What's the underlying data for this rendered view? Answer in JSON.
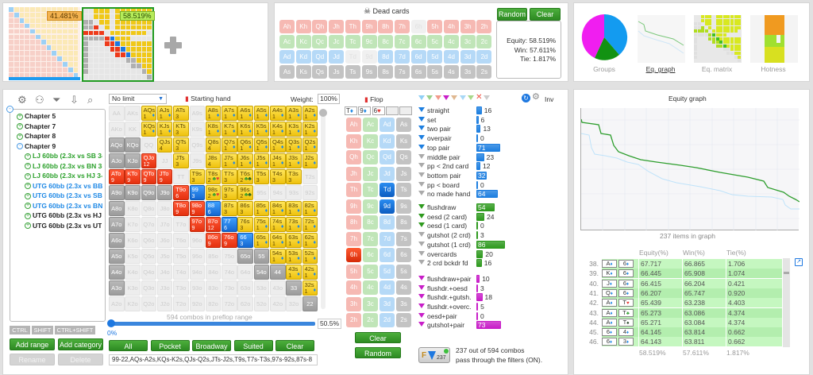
{
  "ranges_strip": {
    "range1_equity": "41.481%",
    "range2_equity": "58.519%",
    "add_icon": "plus-icon"
  },
  "dead_cards": {
    "title": "Dead cards",
    "icon": "skull-icon",
    "random": "Random",
    "clear": "Clear",
    "rows": [
      [
        "Ah",
        "Kh",
        "Qh",
        "Jh",
        "Th",
        "9h",
        "8h",
        "7h",
        "6h",
        "5h",
        "4h",
        "3h",
        "2h"
      ],
      [
        "Ac",
        "Kc",
        "Qc",
        "Jc",
        "Tc",
        "9c",
        "8c",
        "7c",
        "6c",
        "5c",
        "4c",
        "3c",
        "2c"
      ],
      [
        "Ad",
        "Kd",
        "Qd",
        "Jd",
        "Td",
        "9d",
        "8d",
        "7d",
        "6d",
        "5d",
        "4d",
        "3d",
        "2d"
      ],
      [
        "As",
        "Ks",
        "Qs",
        "Js",
        "Ts",
        "9s",
        "8s",
        "7s",
        "6s",
        "5s",
        "4s",
        "3s",
        "2s"
      ]
    ],
    "unavailable": [
      "6h",
      "Td",
      "9d"
    ]
  },
  "stats": {
    "equity": "Equity: 58.519%",
    "win": "Win: 57.611%",
    "tie": "Tie: 1.817%"
  },
  "views": [
    {
      "label": "Groups"
    },
    {
      "label": "Eq. graph",
      "active": true
    },
    {
      "label": "Eq. matrix"
    },
    {
      "label": "Hotness"
    }
  ],
  "toolbar_icons": [
    "gear-icon",
    "user-icon",
    "filter-icon",
    "import-icon",
    "search-icon"
  ],
  "tree": [
    {
      "label": "Chapter 5",
      "color": "#222"
    },
    {
      "label": "Chapter 7",
      "color": "#222"
    },
    {
      "label": "Chapter 8",
      "color": "#222"
    },
    {
      "label": "Chapter 9",
      "color": "#222",
      "expanded": true
    },
    {
      "label": "LJ 60bb (2.3x vs SB 3-",
      "color": "#2aa02a",
      "child": true
    },
    {
      "label": "LJ 60bb (2.3x vs BN 3-",
      "color": "#2aa02a",
      "child": true
    },
    {
      "label": "LJ 60bb (2.3x vs HJ 3-",
      "color": "#2aa02a",
      "child": true
    },
    {
      "label": "UTG 60bb (2.3x vs BB",
      "color": "#1e88e5",
      "child": true
    },
    {
      "label": "UTG 60bb (2.3x vs SB",
      "color": "#1e88e5",
      "child": true
    },
    {
      "label": "UTG 60bb (2.3x vs BN",
      "color": "#1e88e5",
      "child": true
    },
    {
      "label": "UTG 60bb (2.3x vs HJ",
      "color": "#222",
      "child": true
    },
    {
      "label": "UTG 60bb (2.3x vs UT",
      "color": "#222",
      "child": true
    }
  ],
  "keys": {
    "ctrl": "CTRL",
    "shift": "SHIFT",
    "ctrl_shift": "CTRL+SHIFT"
  },
  "tree_buttons": {
    "add_range": "Add range",
    "add_category": "Add category",
    "rename": "Rename",
    "delete": "Delete"
  },
  "range_editor": {
    "limit": "No limit",
    "title": "Starting hand",
    "weight_label": "Weight:",
    "weight": "100%",
    "combos_text": "594 combos in preflop range",
    "slider_min": "0%",
    "slider_value": "50.5%",
    "slider_fraction": 0.505,
    "buttons": [
      "All",
      "Pocket",
      "Broadway",
      "Suited",
      "Clear"
    ],
    "range_text": "99-22,AQs-A2s,KQs-K2s,QJs-Q2s,JTs-J2s,T9s,T7s-T3s,97s-92s,87s-8"
  },
  "matrix": [
    [
      [
        "AA",
        "f"
      ],
      [
        "AKs",
        "f"
      ],
      [
        "AQs",
        "y",
        "1",
        "♦"
      ],
      [
        "AJs",
        "y",
        "1",
        "♦"
      ],
      [
        "ATs",
        "y",
        "3"
      ],
      [
        "A9s",
        "f"
      ],
      [
        "A8s",
        "y",
        "1",
        "♦"
      ],
      [
        "A7s",
        "y",
        "1",
        "♦"
      ],
      [
        "A6s",
        "y",
        "1",
        "♦"
      ],
      [
        "A5s",
        "y",
        "1",
        "♦"
      ],
      [
        "A4s",
        "y",
        "1",
        "♦"
      ],
      [
        "A3s",
        "y",
        "1",
        "♦"
      ],
      [
        "A2s",
        "y",
        "1",
        "♦"
      ]
    ],
    [
      [
        "AKo",
        "f"
      ],
      [
        "KK",
        "f"
      ],
      [
        "KQs",
        "y",
        "1",
        "♦"
      ],
      [
        "KJs",
        "y",
        "1",
        "♦"
      ],
      [
        "KTs",
        "y",
        "3"
      ],
      [
        "K9s",
        "f"
      ],
      [
        "K8s",
        "y",
        "1",
        "♦"
      ],
      [
        "K7s",
        "y",
        "1",
        "♦"
      ],
      [
        "K6s",
        "y",
        "1",
        "♦"
      ],
      [
        "K5s",
        "y",
        "1",
        "♦"
      ],
      [
        "K4s",
        "y",
        "1",
        "♦"
      ],
      [
        "K3s",
        "y",
        "1",
        "♦"
      ],
      [
        "K2s",
        "y",
        "1",
        "♦"
      ]
    ],
    [
      [
        "AQo",
        "g"
      ],
      [
        "KQo",
        "g"
      ],
      [
        "QQ",
        "f"
      ],
      [
        "QJs",
        "y",
        "4"
      ],
      [
        "QTs",
        "y",
        "3"
      ],
      [
        "Q9s",
        "f"
      ],
      [
        "Q8s",
        "y",
        "4"
      ],
      [
        "Q7s",
        "y",
        "1",
        "♦"
      ],
      [
        "Q6s",
        "y",
        "1",
        "♦"
      ],
      [
        "Q5s",
        "y",
        "1",
        "♦"
      ],
      [
        "Q4s",
        "y",
        "1",
        "♦"
      ],
      [
        "Q3s",
        "y",
        "1",
        "♦"
      ],
      [
        "Q2s",
        "y",
        "1",
        "♦"
      ]
    ],
    [
      [
        "AJo",
        "g"
      ],
      [
        "KJo",
        "g"
      ],
      [
        "QJo",
        "r",
        "12"
      ],
      [
        "JJ",
        "f"
      ],
      [
        "JTs",
        "y",
        "3"
      ],
      [
        "J9s",
        "f"
      ],
      [
        "J8s",
        "y",
        "4"
      ],
      [
        "J7s",
        "y",
        "1",
        "♦"
      ],
      [
        "J6s",
        "y",
        "1",
        "♦"
      ],
      [
        "J5s",
        "y",
        "1",
        "♦"
      ],
      [
        "J4s",
        "y",
        "1",
        "♦"
      ],
      [
        "J3s",
        "y",
        "1",
        "♦"
      ],
      [
        "J2s",
        "y",
        "1",
        "♦"
      ]
    ],
    [
      [
        "ATo",
        "r",
        "9"
      ],
      [
        "KTo",
        "r",
        "9"
      ],
      [
        "QTo",
        "r",
        "9"
      ],
      [
        "JTo",
        "r",
        "9"
      ],
      [
        "TT",
        "f"
      ],
      [
        "T9s",
        "y",
        "3"
      ],
      [
        "T8s",
        "y",
        "2",
        "♣♥"
      ],
      [
        "T7s",
        "y",
        "3"
      ],
      [
        "T6s",
        "y",
        "2",
        "♣♣"
      ],
      [
        "T5s",
        "y",
        "3"
      ],
      [
        "T4s",
        "y",
        "3"
      ],
      [
        "T3s",
        "y",
        "3"
      ],
      [
        "T2s",
        "f"
      ]
    ],
    [
      [
        "A9o",
        "g"
      ],
      [
        "K9o",
        "g"
      ],
      [
        "Q9o",
        "g"
      ],
      [
        "J9o",
        "g"
      ],
      [
        "T9o",
        "r",
        "6"
      ],
      [
        "99",
        "b",
        "3"
      ],
      [
        "98s",
        "y",
        "2",
        "♣♥"
      ],
      [
        "97s",
        "y",
        "3"
      ],
      [
        "96s",
        "y",
        "2",
        "♣♣"
      ],
      [
        "95s",
        "f"
      ],
      [
        "94s",
        "f"
      ],
      [
        "93s",
        "f"
      ],
      [
        "92s",
        "f"
      ]
    ],
    [
      [
        "A8o",
        "g"
      ],
      [
        "K8o",
        "f"
      ],
      [
        "Q8o",
        "f"
      ],
      [
        "J8o",
        "f"
      ],
      [
        "T8o",
        "r",
        "9"
      ],
      [
        "98o",
        "r",
        "9"
      ],
      [
        "88",
        "b",
        "6"
      ],
      [
        "87s",
        "y",
        "3"
      ],
      [
        "86s",
        "y",
        "3"
      ],
      [
        "85s",
        "y",
        "1",
        "♦"
      ],
      [
        "84s",
        "y",
        "1",
        "♦"
      ],
      [
        "83s",
        "y",
        "1",
        "♦"
      ],
      [
        "82s",
        "y",
        "1",
        "♦"
      ]
    ],
    [
      [
        "A7o",
        "g"
      ],
      [
        "K7o",
        "f"
      ],
      [
        "Q7o",
        "f"
      ],
      [
        "J7o",
        "f"
      ],
      [
        "T7o",
        "f"
      ],
      [
        "97o",
        "r",
        "9"
      ],
      [
        "87o",
        "r",
        "12"
      ],
      [
        "77",
        "b",
        "6"
      ],
      [
        "76s",
        "y",
        "3"
      ],
      [
        "75s",
        "y",
        "1",
        "♦"
      ],
      [
        "74s",
        "y",
        "1",
        "♦"
      ],
      [
        "73s",
        "y",
        "1",
        "♦"
      ],
      [
        "72s",
        "y",
        "1",
        "♦"
      ]
    ],
    [
      [
        "A6o",
        "g"
      ],
      [
        "K6o",
        "f"
      ],
      [
        "Q6o",
        "f"
      ],
      [
        "J6o",
        "f"
      ],
      [
        "T6o",
        "f"
      ],
      [
        "96o",
        "f"
      ],
      [
        "86o",
        "r",
        "9"
      ],
      [
        "76o",
        "r",
        "9"
      ],
      [
        "66",
        "b",
        "3"
      ],
      [
        "65s",
        "y",
        "1",
        "♦"
      ],
      [
        "64s",
        "y",
        "1",
        "♦"
      ],
      [
        "63s",
        "y",
        "1",
        "♦"
      ],
      [
        "62s",
        "y",
        "1",
        "♦"
      ]
    ],
    [
      [
        "A5o",
        "g"
      ],
      [
        "K5o",
        "f"
      ],
      [
        "Q5o",
        "f"
      ],
      [
        "J5o",
        "f"
      ],
      [
        "T5o",
        "f"
      ],
      [
        "95o",
        "f"
      ],
      [
        "85o",
        "f"
      ],
      [
        "75o",
        "f"
      ],
      [
        "65o",
        "g"
      ],
      [
        "55",
        "g"
      ],
      [
        "54s",
        "y",
        "1",
        "♦"
      ],
      [
        "53s",
        "y",
        "1",
        "♦"
      ],
      [
        "52s",
        "y",
        "1",
        "♦"
      ]
    ],
    [
      [
        "A4o",
        "g"
      ],
      [
        "K4o",
        "f"
      ],
      [
        "Q4o",
        "f"
      ],
      [
        "J4o",
        "f"
      ],
      [
        "T4o",
        "f"
      ],
      [
        "94o",
        "f"
      ],
      [
        "84o",
        "f"
      ],
      [
        "74o",
        "f"
      ],
      [
        "64o",
        "f"
      ],
      [
        "54o",
        "g"
      ],
      [
        "44",
        "g"
      ],
      [
        "43s",
        "y",
        "1",
        "♦"
      ],
      [
        "42s",
        "y",
        "1",
        "♦"
      ]
    ],
    [
      [
        "A3o",
        "g"
      ],
      [
        "K3o",
        "f"
      ],
      [
        "Q3o",
        "f"
      ],
      [
        "J3o",
        "f"
      ],
      [
        "T3o",
        "f"
      ],
      [
        "93o",
        "f"
      ],
      [
        "83o",
        "f"
      ],
      [
        "73o",
        "f"
      ],
      [
        "63o",
        "f"
      ],
      [
        "53o",
        "f"
      ],
      [
        "43o",
        "f"
      ],
      [
        "33",
        "g"
      ],
      [
        "32s",
        "y",
        "1",
        "♦"
      ]
    ],
    [
      [
        "A2o",
        "f"
      ],
      [
        "K2o",
        "f"
      ],
      [
        "Q2o",
        "f"
      ],
      [
        "J2o",
        "f"
      ],
      [
        "T2o",
        "f"
      ],
      [
        "92o",
        "f"
      ],
      [
        "82o",
        "f"
      ],
      [
        "72o",
        "f"
      ],
      [
        "62o",
        "f"
      ],
      [
        "52o",
        "f"
      ],
      [
        "42o",
        "f"
      ],
      [
        "32o",
        "f"
      ],
      [
        "22",
        "g"
      ]
    ]
  ],
  "flop": {
    "title": "Flop",
    "board": [
      {
        "r": "T",
        "s": "♦",
        "c": "#1e88e5"
      },
      {
        "r": "9",
        "s": "♦",
        "c": "#1e88e5"
      },
      {
        "r": "6",
        "s": "♥",
        "c": "#e53935"
      }
    ],
    "ranks": [
      "A",
      "K",
      "Q",
      "J",
      "T",
      "9",
      "8",
      "7",
      "6",
      "5",
      "4",
      "3",
      "2"
    ],
    "suits": [
      "h",
      "c",
      "d",
      "s"
    ],
    "selected": [
      "6h",
      "Td",
      "9d"
    ],
    "clear": "Clear",
    "random": "Random"
  },
  "filters": {
    "inv": "Inv",
    "groups": [
      {
        "color": "#1e7fe0",
        "items": [
          {
            "l": "straight",
            "n": 16,
            "on": true
          },
          {
            "l": "set",
            "n": 6,
            "on": true
          },
          {
            "l": "two pair",
            "n": 13,
            "on": true
          },
          {
            "l": "overpair",
            "n": 0,
            "on": true
          },
          {
            "l": "top pair",
            "n": 71,
            "on": true
          },
          {
            "l": "middle pair",
            "n": 23
          },
          {
            "l": "pp < 2nd card",
            "n": 12
          },
          {
            "l": "bottom pair",
            "n": 32
          },
          {
            "l": "pp < board",
            "n": 0
          },
          {
            "l": "no made hand",
            "n": 64
          }
        ]
      },
      {
        "color": "#2f9a1f",
        "items": [
          {
            "l": "flushdraw",
            "n": 54,
            "on": true
          },
          {
            "l": "oesd (2 card)",
            "n": 24,
            "on": true
          },
          {
            "l": "oesd (1 card)",
            "n": 0,
            "on": true
          },
          {
            "l": "gutshot (2 crd)",
            "n": 3
          },
          {
            "l": "gutshot (1 crd)",
            "n": 86
          },
          {
            "l": "overcards",
            "n": 20
          },
          {
            "l": "2 crd bckdr fd",
            "n": 16
          }
        ]
      },
      {
        "color": "#c81ec8",
        "items": [
          {
            "l": "flushdraw+pair",
            "n": 10,
            "on": true
          },
          {
            "l": "flushdr.+oesd",
            "n": 3,
            "on": true
          },
          {
            "l": "flushdr.+gutsh.",
            "n": 18,
            "on": true
          },
          {
            "l": "flushdr.+overc.",
            "n": 5,
            "on": true
          },
          {
            "l": "oesd+pair",
            "n": 0,
            "on": true
          },
          {
            "l": "gutshot+pair",
            "n": 73,
            "on": true
          }
        ]
      }
    ],
    "summary_count": "237",
    "summary_line1": "237 out of 594 combos",
    "summary_line2": "pass through the filters (ON)."
  },
  "equity_graph": {
    "title": "Equity graph",
    "caption": "237 items in graph"
  },
  "equity_table": {
    "headers": [
      "Equity(%)",
      "Win(%)",
      "Tie(%)"
    ],
    "rows": [
      {
        "i": "38.",
        "c1": "A",
        "s1": "♦",
        "c2": "6",
        "s2": "♦",
        "eq": "67.717",
        "win": "66.865",
        "tie": "1.706"
      },
      {
        "i": "39.",
        "c1": "K",
        "s1": "♦",
        "c2": "6",
        "s2": "♦",
        "eq": "66.445",
        "win": "65.908",
        "tie": "1.074"
      },
      {
        "i": "40.",
        "c1": "J",
        "s1": "♦",
        "c2": "6",
        "s2": "♦",
        "eq": "66.415",
        "win": "66.204",
        "tie": "0.421"
      },
      {
        "i": "41.",
        "c1": "Q",
        "s1": "♦",
        "c2": "6",
        "s2": "♦",
        "eq": "66.207",
        "win": "65.747",
        "tie": "0.920"
      },
      {
        "i": "42.",
        "c1": "A",
        "s1": "♦",
        "c2": "T",
        "s2": "♥",
        "eq": "65.439",
        "win": "63.238",
        "tie": "4.403"
      },
      {
        "i": "43.",
        "c1": "A",
        "s1": "♦",
        "c2": "T",
        "s2": "♣",
        "eq": "65.273",
        "win": "63.086",
        "tie": "4.374"
      },
      {
        "i": "44.",
        "c1": "A",
        "s1": "♦",
        "c2": "T",
        "s2": "♠",
        "eq": "65.271",
        "win": "63.084",
        "tie": "4.374"
      },
      {
        "i": "45.",
        "c1": "6",
        "s1": "♦",
        "c2": "4",
        "s2": "♦",
        "eq": "64.145",
        "win": "63.814",
        "tie": "0.662"
      },
      {
        "i": "46.",
        "c1": "6",
        "s1": "♦",
        "c2": "3",
        "s2": "♦",
        "eq": "64.143",
        "win": "63.811",
        "tie": "0.662"
      }
    ],
    "totals": [
      "58.519%",
      "57.611%",
      "1.817%"
    ]
  }
}
